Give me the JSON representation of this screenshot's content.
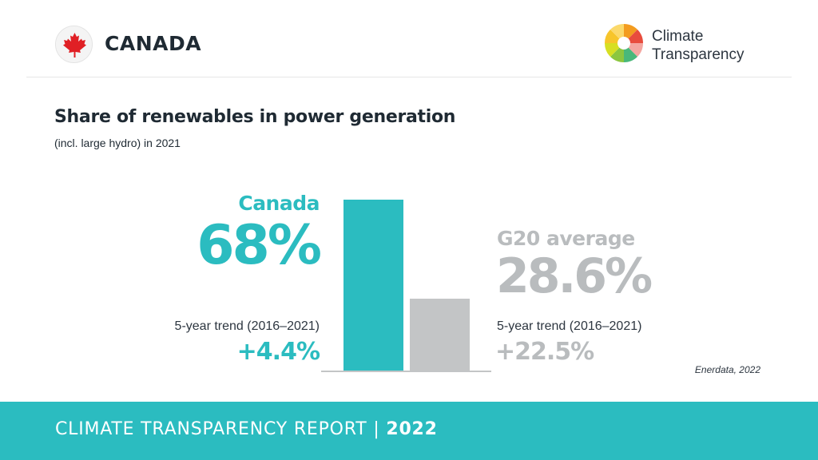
{
  "header": {
    "country": "CANADA",
    "logo_line1": "Climate",
    "logo_line2": "Transparency"
  },
  "title": "Share of renewables in power generation",
  "subtitle": "(incl. large hydro) in 2021",
  "canada": {
    "label": "Canada",
    "value_text": "68%",
    "trend_label": "5-year trend (2016–2021)",
    "trend_value": "+4.4%"
  },
  "g20": {
    "label": "G20 average",
    "value_text": "28.6%",
    "trend_label": "5-year trend (2016–2021)",
    "trend_value": "+22.5%"
  },
  "source": "Enerdata, 2022",
  "footer": {
    "report": "CLIMATE TRANSPARENCY REPORT",
    "separator": " | ",
    "year": "2022"
  },
  "colors": {
    "accent": "#2bbcc0",
    "g20_bar": "#c3c5c6",
    "g20_text": "#b9bcbe"
  },
  "chart_data": {
    "type": "bar",
    "categories": [
      "Canada",
      "G20 average"
    ],
    "values": [
      68,
      28.6
    ],
    "unit": "%",
    "title": "Share of renewables in power generation",
    "subtitle": "(incl. large hydro) in 2021",
    "ylim": [
      0,
      68
    ],
    "grid": false,
    "legend": "none",
    "annotations": [
      {
        "category": "Canada",
        "label": "5-year trend (2016–2021)",
        "value": "+4.4%"
      },
      {
        "category": "G20 average",
        "label": "5-year trend (2016–2021)",
        "value": "+22.5%"
      }
    ]
  }
}
